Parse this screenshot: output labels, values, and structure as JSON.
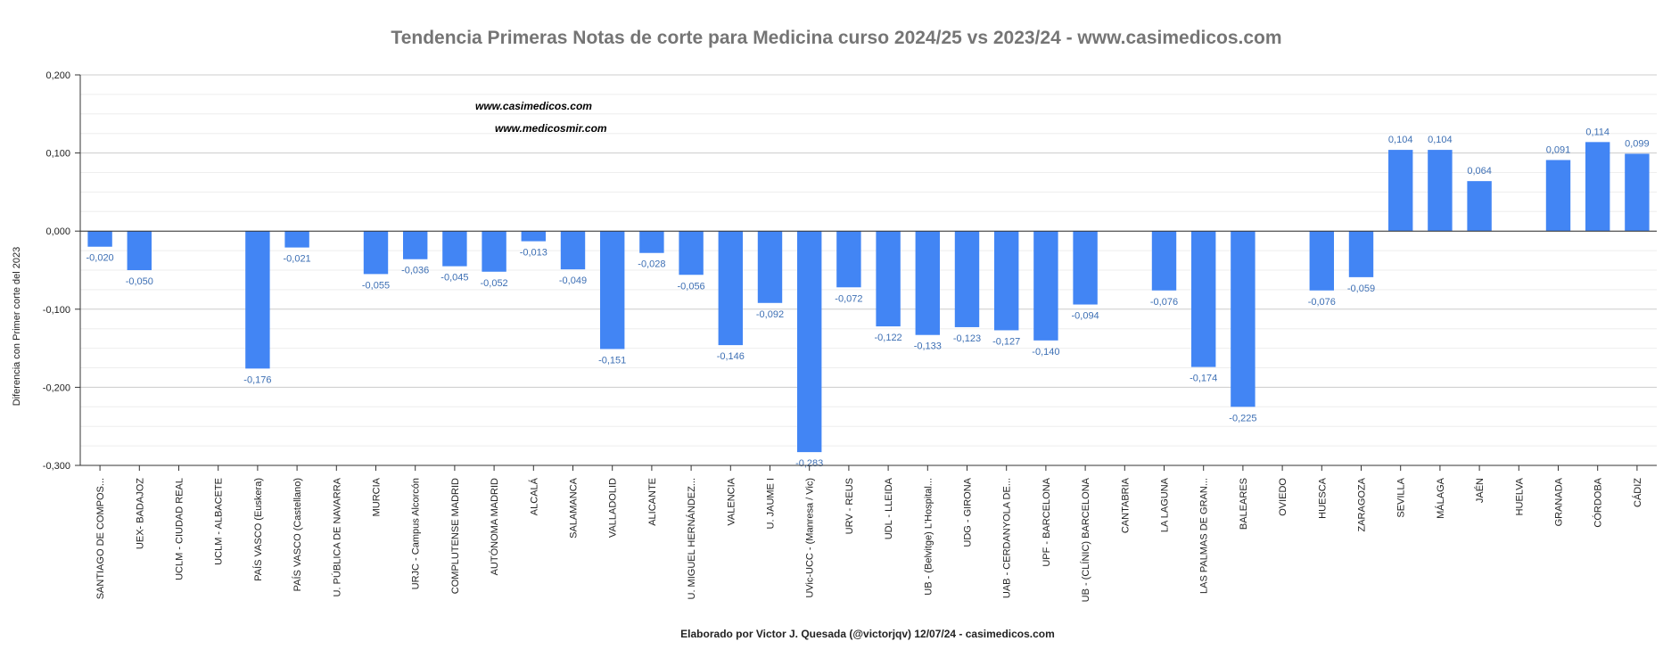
{
  "chart_data": {
    "type": "bar",
    "title": "Tendencia Primeras Notas de corte para Medicina curso 2024/25 vs 2023/24 -  www.casimedicos.com",
    "xlabel": "",
    "ylabel": "Diferencia con Primer corte del 2023",
    "footer": "Elaborado por Victor J. Quesada (@victorjqv) 12/07/24 - casimedicos.com",
    "watermarks": [
      "www.casimedicos.com",
      "www.medicosmir.com"
    ],
    "ylim": [
      -0.3,
      0.2
    ],
    "yticks": [
      -0.3,
      -0.2,
      -0.1,
      0.0,
      0.1,
      0.2
    ],
    "ytick_labels": [
      "-0,300",
      "-0,200",
      "-0,100",
      "0,000",
      "0,100",
      "0,200"
    ],
    "grid": true,
    "legend": "none",
    "bar_color": "#4285f4",
    "categories": [
      "SANTIAGO DE COMPOS...",
      "UEX- BADAJOZ",
      "UCLM - CIUDAD REAL",
      "UCLM - ALBACETE",
      "PAÍS VASCO (Euskera)",
      "PAÍS VASCO (Castellano)",
      "U. PÚBLICA DE NAVARRA",
      "MURCIA",
      "URJC - Campus Alcorcón",
      "COMPLUTENSE MADRID",
      "AUTÓNOMA MADRID",
      "ALCALÁ",
      "SALAMANCA",
      "VALLADOLID",
      "ALICANTE",
      "U. MIGUEL HERNÁNDEZ...",
      "VALENCIA",
      "U. JAUME I",
      "UVic-UCC - (Manresa / Vic)",
      "URV - REUS",
      "UDL - LLEIDA",
      "UB - (Belvitge) L'Hospital...",
      "UDG - GIRONA",
      "UAB - CERDANYOLA DE...",
      "UPF - BARCELONA",
      "UB - (CLÍNIC) BARCELONA",
      "CANTABRIA",
      "LA LAGUNA",
      "LAS PALMAS DE GRAN...",
      "BALEARES",
      "OVIEDO",
      "HUESCA",
      "ZARAGOZA",
      "SEVILLA",
      "MÁLAGA",
      "JAÉN",
      "HUELVA",
      "GRANADA",
      "CÓRDOBA",
      "CÁDIZ"
    ],
    "values": [
      -0.02,
      -0.05,
      null,
      null,
      -0.176,
      -0.021,
      null,
      -0.055,
      -0.036,
      -0.045,
      -0.052,
      -0.013,
      -0.049,
      -0.151,
      -0.028,
      -0.056,
      -0.146,
      -0.092,
      -0.283,
      -0.072,
      -0.122,
      -0.133,
      -0.123,
      -0.127,
      -0.14,
      -0.094,
      null,
      -0.076,
      -0.174,
      -0.225,
      null,
      -0.076,
      -0.059,
      0.104,
      0.104,
      0.064,
      null,
      0.091,
      0.114,
      0.099
    ],
    "value_labels": [
      "-0,020",
      "-0,050",
      "",
      "",
      "-0,176",
      "-0,021",
      "",
      "-0,055",
      "-0,036",
      "-0,045",
      "-0,052",
      "-0,013",
      "-0,049",
      "-0,151",
      "-0,028",
      "-0,056",
      "-0,146",
      "-0,092",
      "-0,283",
      "-0,072",
      "-0,122",
      "-0,133",
      "-0,123",
      "-0,127",
      "-0,140",
      "-0,094",
      "",
      "-0,076",
      "-0,174",
      "-0,225",
      "",
      "-0,076",
      "-0,059",
      "0,104",
      "0,104",
      "0,064",
      "",
      "0,091",
      "0,114",
      "0,099"
    ]
  }
}
